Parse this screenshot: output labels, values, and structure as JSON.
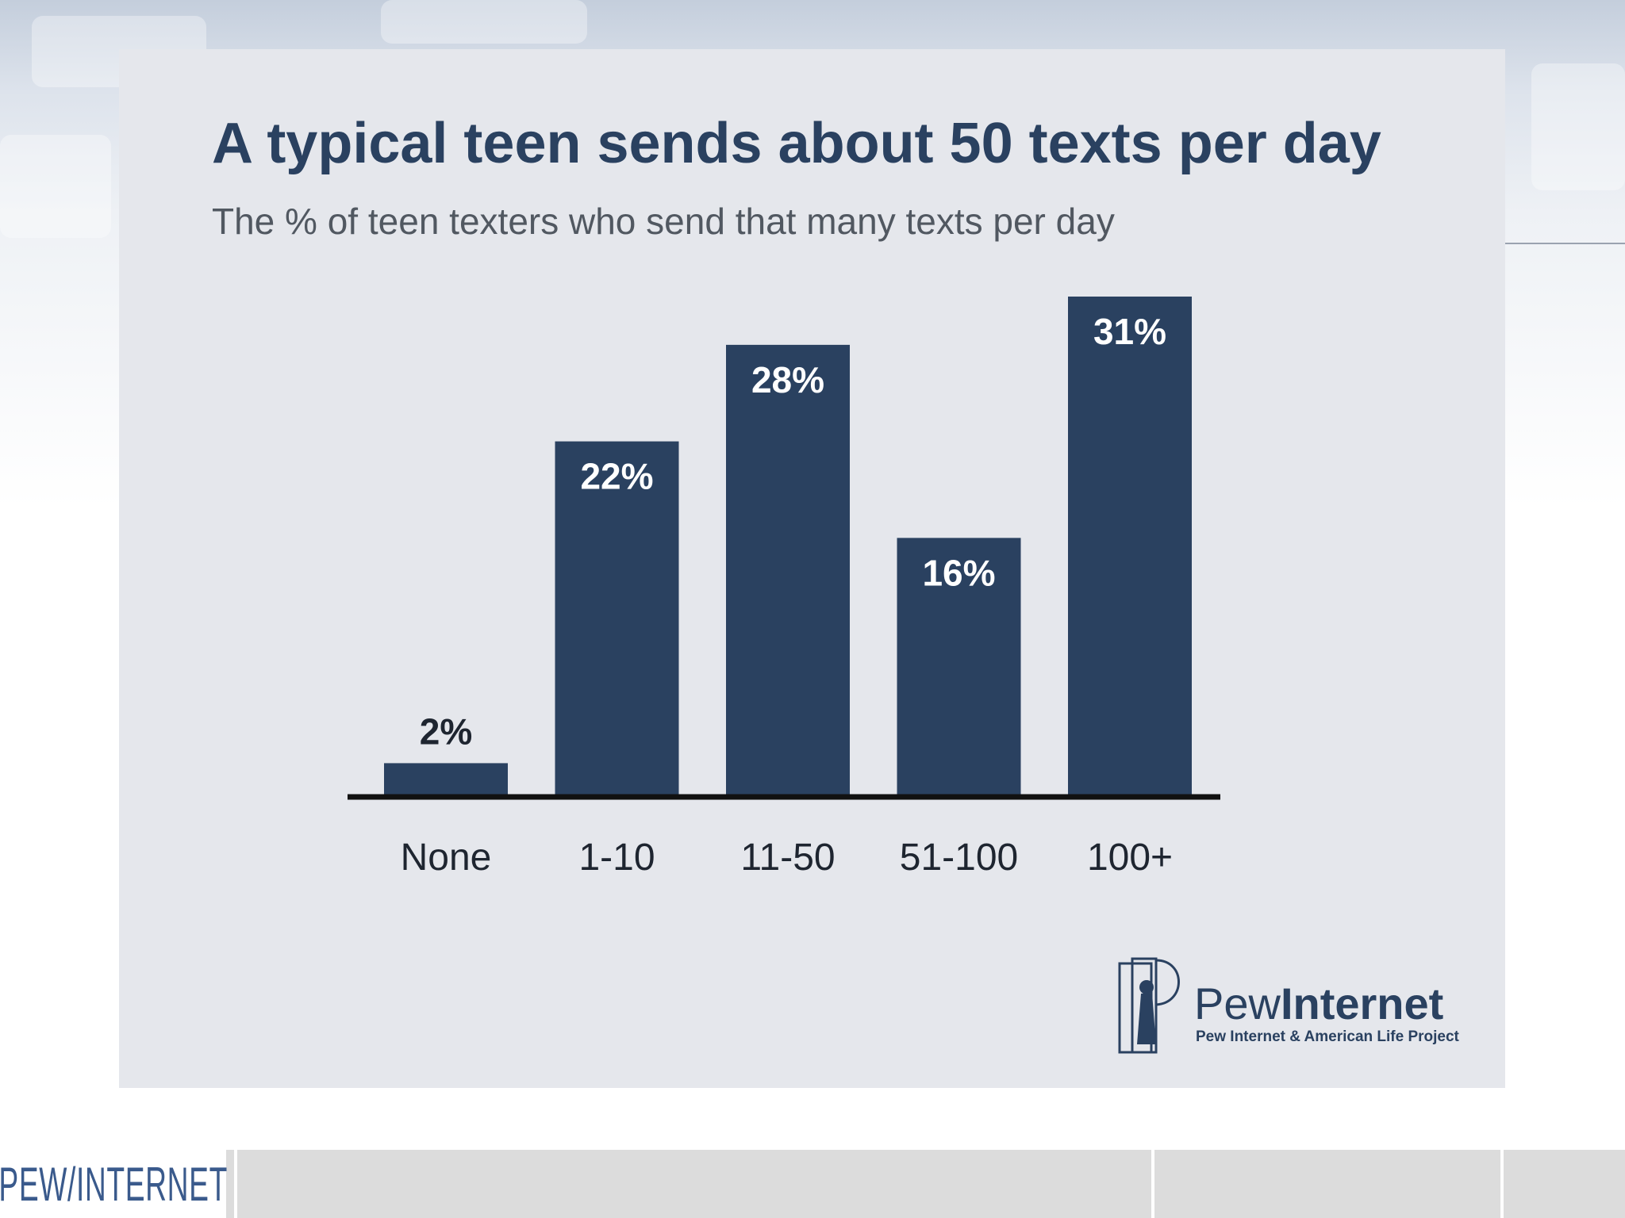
{
  "chart_data": {
    "type": "bar",
    "title": "A typical teen sends about 50 texts per day",
    "subtitle": "The % of teen texters who send that many texts per day",
    "categories": [
      "None",
      "1-10",
      "11-50",
      "51-100",
      "100+"
    ],
    "values": [
      2,
      22,
      28,
      16,
      31
    ],
    "value_labels": [
      "2%",
      "22%",
      "28%",
      "16%",
      "31%"
    ],
    "xlabel": "",
    "ylabel": "",
    "ylim": [
      0,
      31
    ],
    "grid": false,
    "bar_color": "#2a4160"
  },
  "logo": {
    "name_light": "Pew",
    "name_bold": "Internet",
    "tagline": "Pew Internet & American Life Project"
  },
  "footer": {
    "brand": "PEW/INTERNET"
  }
}
